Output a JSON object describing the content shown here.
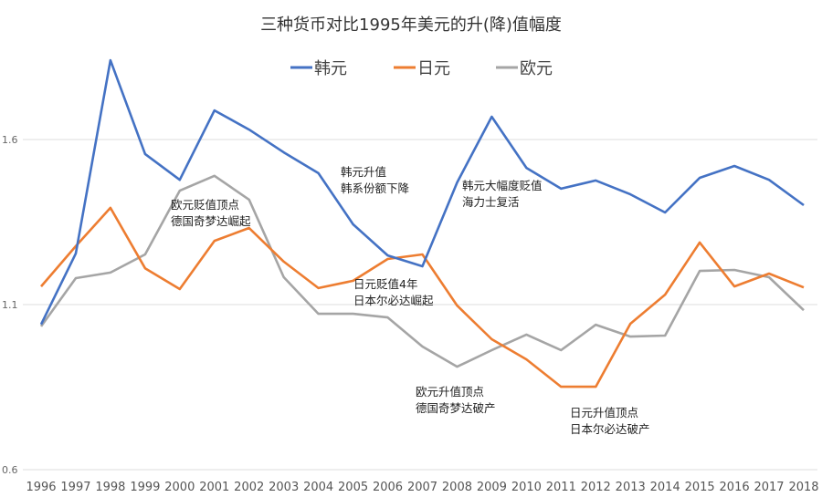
{
  "chart_data": {
    "type": "line",
    "title": "三种货币对比1995年美元的升(降)值幅度",
    "xlabel": "",
    "ylabel": "",
    "ylim": [
      0.6,
      1.6
    ],
    "yticks": [
      "0.6",
      "1.1",
      "1.6"
    ],
    "grid": true,
    "legend": "top-center",
    "categories": [
      "1996",
      "1997",
      "1998",
      "1999",
      "2000",
      "2001",
      "2002",
      "2003",
      "2004",
      "2005",
      "2006",
      "2007",
      "2008",
      "2009",
      "2010",
      "2011",
      "2012",
      "2013",
      "2014",
      "2015",
      "2016",
      "2017",
      "2018"
    ],
    "series": [
      {
        "name": "韩元",
        "color": "#4472C4",
        "values": [
          1.04,
          1.255,
          1.84,
          1.556,
          1.478,
          1.688,
          1.63,
          1.561,
          1.498,
          1.343,
          1.249,
          1.216,
          1.47,
          1.669,
          1.514,
          1.451,
          1.476,
          1.434,
          1.379,
          1.484,
          1.52,
          1.478,
          1.401
        ]
      },
      {
        "name": "日元",
        "color": "#ED7D31",
        "values": [
          1.155,
          1.277,
          1.393,
          1.21,
          1.147,
          1.293,
          1.332,
          1.23,
          1.15,
          1.172,
          1.238,
          1.252,
          1.097,
          0.995,
          0.934,
          0.851,
          0.851,
          1.042,
          1.13,
          1.288,
          1.155,
          1.194,
          1.152
        ]
      },
      {
        "name": "欧元",
        "color": "#A5A5A5",
        "values": [
          1.034,
          1.18,
          1.197,
          1.252,
          1.445,
          1.49,
          1.418,
          1.183,
          1.072,
          1.072,
          1.061,
          0.973,
          0.912,
          0.962,
          1.009,
          0.962,
          1.039,
          1.003,
          1.006,
          1.202,
          1.205,
          1.183,
          1.083
        ]
      }
    ],
    "annotations": [
      {
        "lines": [
          "欧元贬值顶点",
          "德国奇梦达崛起"
        ],
        "year": "2000"
      },
      {
        "lines": [
          "韩元升值",
          "韩系份额下降"
        ],
        "year": "2004"
      },
      {
        "lines": [
          "韩元大幅度贬值",
          "海力士复活"
        ],
        "year": "2008"
      },
      {
        "lines": [
          "日元贬值4年",
          "日本尔必达崛起"
        ],
        "year": "2005"
      },
      {
        "lines": [
          "欧元升值顶点",
          "德国奇梦达破产"
        ],
        "year": "2007"
      },
      {
        "lines": [
          "日元升值顶点",
          "日本尔必达破产"
        ],
        "year": "2012"
      }
    ]
  }
}
